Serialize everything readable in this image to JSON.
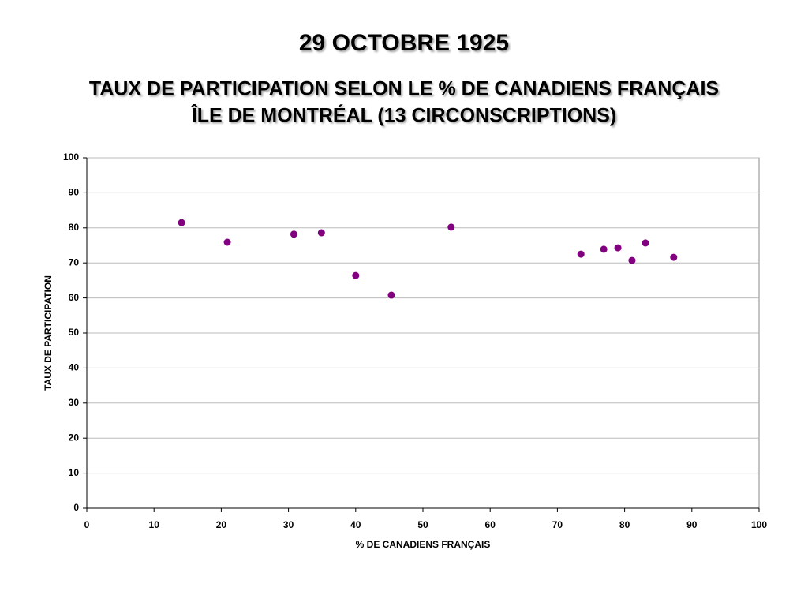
{
  "chart_data": {
    "type": "scatter",
    "title": "29 OCTOBRE 1925",
    "subtitle": [
      "TAUX DE PARTICIPATION SELON LE % DE CANADIENS FRANÇAIS",
      "ÎLE DE MONTRÉAL (13 CIRCONSCRIPTIONS)"
    ],
    "x_label": "% DE CANADIENS FRANÇAIS",
    "y_label": "TAUX DE PARTICIPATION",
    "x": [
      14.1,
      20.9,
      30.8,
      34.9,
      40.0,
      45.3,
      54.2,
      73.5,
      76.9,
      79.0,
      81.1,
      83.1,
      87.3
    ],
    "values": [
      81.5,
      75.9,
      78.2,
      78.6,
      66.4,
      60.8,
      80.2,
      72.5,
      73.9,
      74.3,
      70.7,
      75.7,
      71.6
    ],
    "color": "#800080",
    "xlim": [
      0,
      100
    ],
    "xticks": [
      0,
      10,
      20,
      30,
      40,
      50,
      60,
      70,
      80,
      90,
      100
    ],
    "ylim": [
      0,
      100
    ],
    "yticks": [
      0,
      10,
      20,
      30,
      40,
      50,
      60,
      70,
      80,
      90,
      100
    ],
    "grid": true
  }
}
